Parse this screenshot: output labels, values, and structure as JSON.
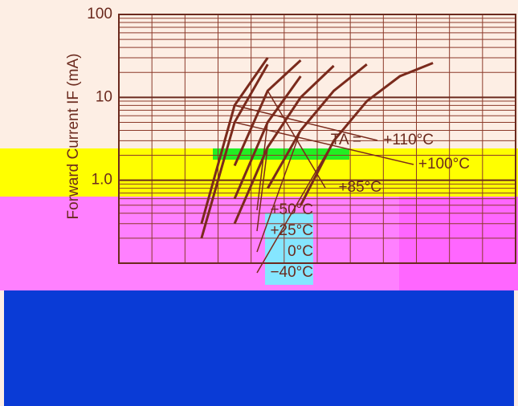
{
  "chart_data": {
    "type": "line",
    "y_label": "Forward Current IF (mA)",
    "annotation": "TA =",
    "categories": [
      null,
      null,
      null,
      null,
      null,
      null,
      null,
      null,
      null,
      null,
      null,
      null
    ],
    "series": [
      {
        "name": "+110°C",
        "color": "#7a2a1c",
        "values": [
          null,
          null,
          0.3,
          8,
          30,
          null,
          null,
          null,
          null,
          null,
          null,
          null
        ]
      },
      {
        "name": "+100°C",
        "color": "#7a2a1c",
        "values": [
          null,
          null,
          0.2,
          5,
          25,
          null,
          null,
          null,
          null,
          null,
          null,
          null
        ]
      },
      {
        "name": "+85°C",
        "color": "#7a2a1c",
        "values": [
          null,
          null,
          null,
          1.5,
          12,
          28,
          null,
          null,
          null,
          null,
          null,
          null
        ]
      },
      {
        "name": "+50°C",
        "color": "#7a2a1c",
        "values": [
          null,
          null,
          null,
          0.6,
          5,
          18,
          null,
          null,
          null,
          null,
          null,
          null
        ]
      },
      {
        "name": "+25°C",
        "color": "#7a2a1c",
        "values": [
          null,
          null,
          null,
          0.3,
          2.5,
          10,
          24,
          null,
          null,
          null,
          null,
          null
        ]
      },
      {
        "name": "0°C",
        "color": "#7a2a1c",
        "values": [
          null,
          null,
          null,
          null,
          0.8,
          4,
          12,
          25,
          null,
          null,
          null,
          null
        ]
      },
      {
        "name": "−40°C",
        "color": "#7a2a1c",
        "values": [
          null,
          null,
          null,
          null,
          null,
          0.5,
          3,
          9,
          18,
          26,
          null,
          null
        ]
      }
    ],
    "log_y": true,
    "ylim": [
      0.1,
      100
    ],
    "yticks": [
      {
        "value": 1,
        "label": "1.0"
      },
      10,
      100
    ],
    "minor_yticks": [
      0.2,
      0.3,
      0.4,
      0.5,
      0.6,
      0.7,
      0.8,
      0.9,
      2,
      3,
      4,
      5,
      6,
      7,
      8,
      9,
      20,
      30,
      40,
      50,
      60,
      70,
      80,
      90
    ],
    "grid": true
  }
}
